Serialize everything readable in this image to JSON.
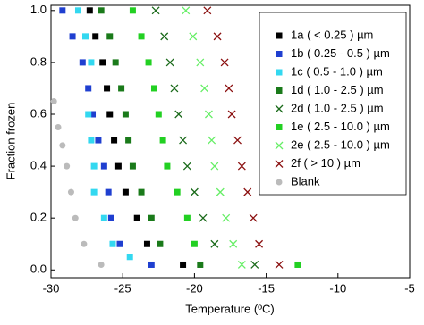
{
  "chart_data": {
    "type": "scatter",
    "x_label": "Temperature (ºC)",
    "y_label": "Fraction frozen",
    "xlim": [
      -30,
      -5
    ],
    "ylim": [
      -0.03,
      1.02
    ],
    "xticks": [
      -30,
      -25,
      -20,
      -15,
      -10,
      -5
    ],
    "yticks": [
      {
        "value": 0,
        "label": "0.0"
      },
      0.2,
      0.4,
      0.6,
      0.8,
      {
        "value": 1,
        "label": "1.0"
      }
    ],
    "legend": "upper right",
    "series": [
      {
        "name": "1a ( < 0.25 )  µm",
        "color": "#000000",
        "marker": "square",
        "x": [
          -27.3,
          -26.9,
          -26.4,
          -26.1,
          -25.9,
          -25.6,
          -25.3,
          -24.8,
          -24.0,
          -23.3,
          -20.8
        ],
        "values": [
          1.0,
          0.9,
          0.8,
          0.7,
          0.6,
          0.5,
          0.4,
          0.3,
          0.2,
          0.1,
          0.02
        ]
      },
      {
        "name": "1b ( 0.25 - 0.5 )  µm",
        "color": "#1f3fd0",
        "marker": "square",
        "x": [
          -29.2,
          -28.5,
          -27.8,
          -27.4,
          -27.1,
          -26.7,
          -26.3,
          -26.0,
          -25.8,
          -25.2,
          -23.0
        ],
        "values": [
          1.0,
          0.9,
          0.8,
          0.7,
          0.6,
          0.5,
          0.4,
          0.3,
          0.2,
          0.1,
          0.02
        ]
      },
      {
        "name": "1c ( 0.5 - 1.0 )  µm",
        "color": "#33d8f0",
        "marker": "square",
        "x": [
          -28.1,
          -27.6,
          -27.2,
          -27.4,
          -27.2,
          -27.0,
          -27.0,
          -26.3,
          -25.7,
          -24.5
        ],
        "values": [
          1.0,
          0.9,
          0.8,
          0.6,
          0.5,
          0.4,
          0.3,
          0.2,
          0.1,
          0.05
        ]
      },
      {
        "name": "1d ( 1.0 - 2.5 )  µm",
        "color": "#1a7a1a",
        "marker": "square",
        "x": [
          -26.5,
          -25.9,
          -25.5,
          -25.1,
          -24.8,
          -24.6,
          -24.3,
          -23.7,
          -23.0,
          -22.4,
          -19.6
        ],
        "values": [
          1.0,
          0.9,
          0.8,
          0.7,
          0.6,
          0.5,
          0.4,
          0.3,
          0.2,
          0.1,
          0.02
        ]
      },
      {
        "name": "2d ( 1.0 - 2.5 )  µm",
        "color": "#1a6a1a",
        "marker": "x",
        "x": [
          -22.7,
          -22.1,
          -21.7,
          -21.4,
          -21.1,
          -20.8,
          -20.5,
          -20.0,
          -19.4,
          -18.6,
          -15.8
        ],
        "values": [
          1.0,
          0.9,
          0.8,
          0.7,
          0.6,
          0.5,
          0.4,
          0.3,
          0.2,
          0.1,
          0.02
        ]
      },
      {
        "name": "1e ( 2.5 - 10.0 )  µm",
        "color": "#22d022",
        "marker": "square",
        "x": [
          -24.3,
          -23.7,
          -23.2,
          -22.8,
          -22.5,
          -22.2,
          -21.9,
          -21.2,
          -20.5,
          -20.0,
          -12.8
        ],
        "values": [
          1.0,
          0.9,
          0.8,
          0.7,
          0.6,
          0.5,
          0.4,
          0.3,
          0.2,
          0.1,
          0.02
        ]
      },
      {
        "name": "2e ( 2.5 - 10.0 )  µm",
        "color": "#66ee66",
        "marker": "x",
        "x": [
          -20.6,
          -20.1,
          -19.6,
          -19.3,
          -19.0,
          -18.8,
          -18.6,
          -18.2,
          -17.8,
          -17.3,
          -16.7
        ],
        "values": [
          1.0,
          0.9,
          0.8,
          0.7,
          0.6,
          0.5,
          0.4,
          0.3,
          0.2,
          0.1,
          0.02
        ]
      },
      {
        "name": "2f ( > 10 )  µm",
        "color": "#8b1010",
        "marker": "x",
        "x": [
          -19.1,
          -18.4,
          -17.9,
          -17.6,
          -17.4,
          -17.0,
          -16.7,
          -16.3,
          -15.9,
          -15.5,
          -14.1
        ],
        "values": [
          1.0,
          0.9,
          0.8,
          0.7,
          0.6,
          0.5,
          0.4,
          0.3,
          0.2,
          0.1,
          0.02
        ]
      },
      {
        "name": "Blank",
        "color": "#bbbbbb",
        "marker": "circle",
        "x": [
          -29.8,
          -29.5,
          -29.2,
          -28.9,
          -28.6,
          -28.3,
          -27.7,
          -26.5
        ],
        "values": [
          0.65,
          0.55,
          0.48,
          0.4,
          0.3,
          0.2,
          0.1,
          0.02
        ]
      }
    ]
  }
}
